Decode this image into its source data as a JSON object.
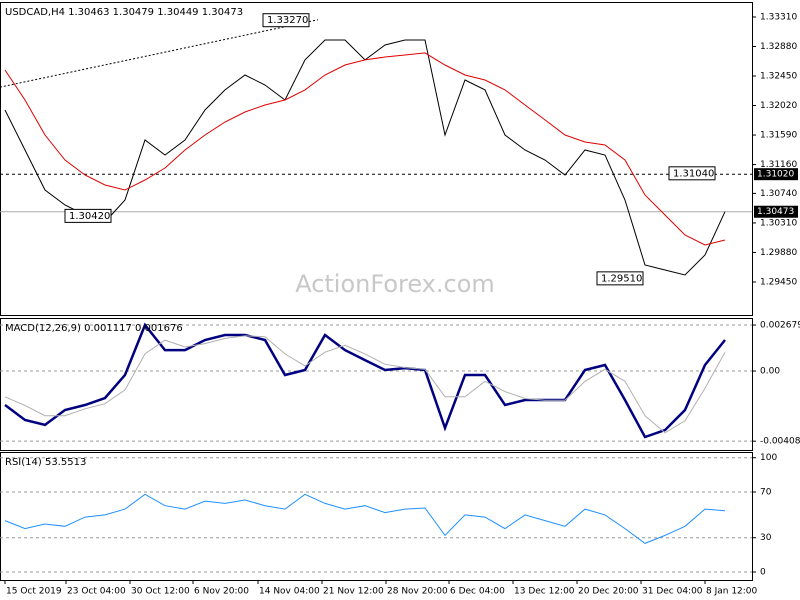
{
  "chart_data": [
    {
      "type": "line",
      "title": "USDCAD,H4 1.30463 1.30479 1.30449 1.30473",
      "watermark": "ActionForex.com",
      "x": [
        0,
        1,
        2,
        3,
        4,
        5,
        6,
        7,
        8,
        9,
        10,
        11,
        12,
        13,
        14,
        15,
        16,
        17,
        18,
        19,
        20,
        21,
        22,
        23,
        24,
        25,
        26,
        27,
        28,
        29,
        30,
        31,
        32,
        33,
        34,
        35,
        36
      ],
      "xlim": [
        -0.25,
        37.35
      ],
      "ylim": [
        1.28969,
        1.33528
      ],
      "yticks": [
        {
          "value": 1.3331,
          "label": "1.33310"
        },
        {
          "value": 1.3288,
          "label": "1.32880"
        },
        {
          "value": 1.3245,
          "label": "1.32450"
        },
        {
          "value": 1.3202,
          "label": "1.32020"
        },
        {
          "value": 1.3159,
          "label": "1.31590"
        },
        {
          "value": 1.3116,
          "label": "1.31160"
        },
        {
          "value": 1.3074,
          "label": "1.30740"
        },
        {
          "value": 1.3031,
          "label": "1.30310"
        },
        {
          "value": 1.2988,
          "label": "1.29880"
        },
        {
          "value": 1.2945,
          "label": "1.29450"
        }
      ],
      "series": [
        {
          "color": "#000000",
          "values": [
            1.31955,
            1.31373,
            1.3079,
            1.30571,
            1.30426,
            1.30324,
            1.30644,
            1.31518,
            1.313,
            1.31518,
            1.31955,
            1.32247,
            1.32465,
            1.32319,
            1.32101,
            1.32684,
            1.32975,
            1.32975,
            1.32684,
            1.32902,
            1.32975,
            1.32975,
            1.31591,
            1.32392,
            1.32247,
            1.31591,
            1.31373,
            1.31227,
            1.31008,
            1.31373,
            1.313,
            1.30644,
            1.29697,
            1.29625,
            1.29552,
            1.29843,
            1.30473
          ]
        },
        {
          "color": "#e00000",
          "values": [
            1.32538,
            1.32101,
            1.31591,
            1.31227,
            1.31008,
            1.30863,
            1.3079,
            1.30936,
            1.3111,
            1.31373,
            1.31591,
            1.3178,
            1.31926,
            1.32028,
            1.32101,
            1.32247,
            1.32465,
            1.32611,
            1.32684,
            1.32727,
            1.32756,
            1.32786,
            1.32611,
            1.32465,
            1.32392,
            1.32247,
            1.32028,
            1.3181,
            1.31591,
            1.31489,
            1.31445,
            1.31227,
            1.30717,
            1.30426,
            1.30134,
            1.29989,
            1.30062
          ]
        }
      ],
      "trendline": {
        "x": [
          -0.25,
          15.65
        ],
        "values": [
          1.32288,
          1.3327
        ]
      },
      "hlines": [
        {
          "value": 1.3102,
          "label": "1.31020",
          "style": "dashed"
        },
        {
          "value": 1.30473,
          "label": "1.30473",
          "style": "solid"
        }
      ],
      "annotations": [
        {
          "label": "1.33270",
          "value": 1.3327,
          "x": 12.9
        },
        {
          "label": "1.30420",
          "value": 1.3042,
          "x": 3.0
        },
        {
          "label": "1.29510",
          "value": 1.2951,
          "x": 29.6
        },
        {
          "label": "1.31040",
          "value": 1.3104,
          "x": 33.2
        }
      ],
      "grid": false
    },
    {
      "type": "line",
      "title": "MACD(12,26,9) 0.001117 0.001676",
      "x": [
        0,
        1,
        2,
        3,
        4,
        5,
        6,
        7,
        8,
        9,
        10,
        11,
        12,
        13,
        14,
        15,
        16,
        17,
        18,
        19,
        20,
        21,
        22,
        23,
        24,
        25,
        26,
        27,
        28,
        29,
        30,
        31,
        32,
        33,
        34,
        35,
        36
      ],
      "xlim": [
        -0.25,
        37.35
      ],
      "ylim": [
        -0.0046,
        0.00309
      ],
      "yticks": [
        0.002679,
        {
          "value": 0,
          "label": "0.00"
        },
        -0.004086
      ],
      "series": [
        {
          "color": "#000080",
          "width": 2.5,
          "values": [
            -0.00198,
            -0.00285,
            -0.00314,
            -0.00227,
            -0.00198,
            -0.00157,
            -0.00023,
            0.00268,
            0.00122,
            0.00122,
            0.00181,
            0.0021,
            0.0021,
            0.00181,
            -0.00023,
            6e-05,
            0.0021,
            0.00122,
            0.00064,
            6e-05,
            0.00017,
            6e-05,
            -0.00332,
            -0.00023,
            -0.00023,
            -0.00198,
            -0.00169,
            -0.00169,
            -0.00169,
            6e-05,
            0.00035,
            -0.00169,
            -0.00384,
            -0.00344,
            -0.00227,
            0.00035,
            0.00181
          ]
        },
        {
          "color": "#b0b0b0",
          "width": 1,
          "values": [
            -0.0015,
            -0.002,
            -0.0026,
            -0.0026,
            -0.0022,
            -0.0019,
            -0.0011,
            0.001,
            0.0018,
            0.0014,
            0.0016,
            0.0019,
            0.00205,
            0.002,
            0.001,
            0.0003,
            0.0011,
            0.0015,
            0.001,
            0.0004,
            0.0002,
            0.0001,
            -0.0015,
            -0.0015,
            -0.0006,
            -0.0012,
            -0.0016,
            -0.0017,
            -0.0017,
            -0.0006,
            0.0001,
            -0.0006,
            -0.0026,
            -0.0036,
            -0.0029,
            -0.001,
            0.0011
          ]
        }
      ],
      "grid": true
    },
    {
      "type": "line",
      "title": "RSI(14) 53.5513",
      "x": [
        0,
        1,
        2,
        3,
        4,
        5,
        6,
        7,
        8,
        9,
        10,
        11,
        12,
        13,
        14,
        15,
        16,
        17,
        18,
        19,
        20,
        21,
        22,
        23,
        24,
        25,
        26,
        27,
        28,
        29,
        30,
        31,
        32,
        33,
        34,
        35,
        36
      ],
      "xlim": [
        -0.25,
        37.35
      ],
      "ylim": [
        -7,
        105
      ],
      "yticks": [
        100,
        70,
        30,
        0
      ],
      "xticks": [
        {
          "value": 0,
          "label": "15 Oct 2019"
        },
        {
          "value": 3.05,
          "label": "23 Oct 04:00"
        },
        {
          "value": 6.25,
          "label": "30 Oct 12:00"
        },
        {
          "value": 9.4,
          "label": "6 Nov 20:00"
        },
        {
          "value": 12.65,
          "label": "14 Nov 04:00"
        },
        {
          "value": 15.85,
          "label": "21 Nov 12:00"
        },
        {
          "value": 19.05,
          "label": "28 Nov 20:00"
        },
        {
          "value": 22.2,
          "label": "6 Dec 04:00"
        },
        {
          "value": 25.4,
          "label": "13 Dec 12:00"
        },
        {
          "value": 28.6,
          "label": "20 Dec 20:00"
        },
        {
          "value": 31.8,
          "label": "31 Dec 04:00"
        },
        {
          "value": 35,
          "label": "8 Jan 12:00"
        }
      ],
      "series": [
        {
          "color": "#1e90ff",
          "width": 1,
          "values": [
            45,
            38,
            42,
            40,
            48,
            50,
            55,
            68,
            58,
            55,
            62,
            60,
            63,
            58,
            55,
            68,
            60,
            55,
            58,
            52,
            55,
            56,
            32,
            50,
            48,
            38,
            50,
            45,
            40,
            55,
            50,
            38,
            25,
            32,
            40,
            55,
            53.55
          ]
        }
      ],
      "grid": true
    }
  ]
}
